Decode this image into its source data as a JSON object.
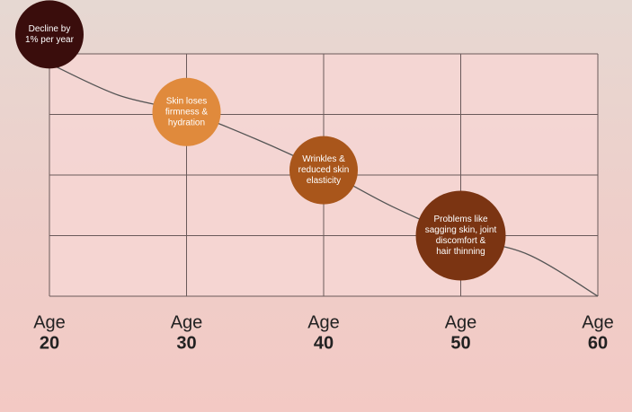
{
  "chart_data": {
    "type": "line",
    "xlabel": "Age",
    "xlim": [
      20,
      60
    ],
    "xticks": [
      20,
      30,
      40,
      50,
      60
    ],
    "ylim": [
      0,
      100
    ],
    "yticks": [
      0,
      25,
      50,
      75,
      100
    ],
    "grid": true,
    "series": [
      {
        "color": "#555555",
        "x": [
          20,
          25,
          30,
          35,
          40,
          45,
          50,
          55,
          60
        ],
        "values": [
          96,
          83,
          76,
          65,
          52,
          37,
          25,
          17,
          0
        ]
      }
    ],
    "annotations": [
      {
        "x": 20,
        "y": 108,
        "color": "#3a0d0c",
        "lines": [
          "Decline by",
          "1% per year"
        ]
      },
      {
        "x": 30,
        "y": 76,
        "color": "#e08a3c",
        "lines": [
          "Skin loses",
          "firmness &",
          "hydration"
        ]
      },
      {
        "x": 40,
        "y": 52,
        "color": "#a9561b",
        "lines": [
          "Wrinkles &",
          "reduced skin",
          "elasticity"
        ]
      },
      {
        "x": 50,
        "y": 25,
        "color": "#7b3412",
        "lines": [
          "Problems like",
          "sagging skin, joint",
          "discomfort &",
          "hair thinning"
        ]
      }
    ]
  }
}
